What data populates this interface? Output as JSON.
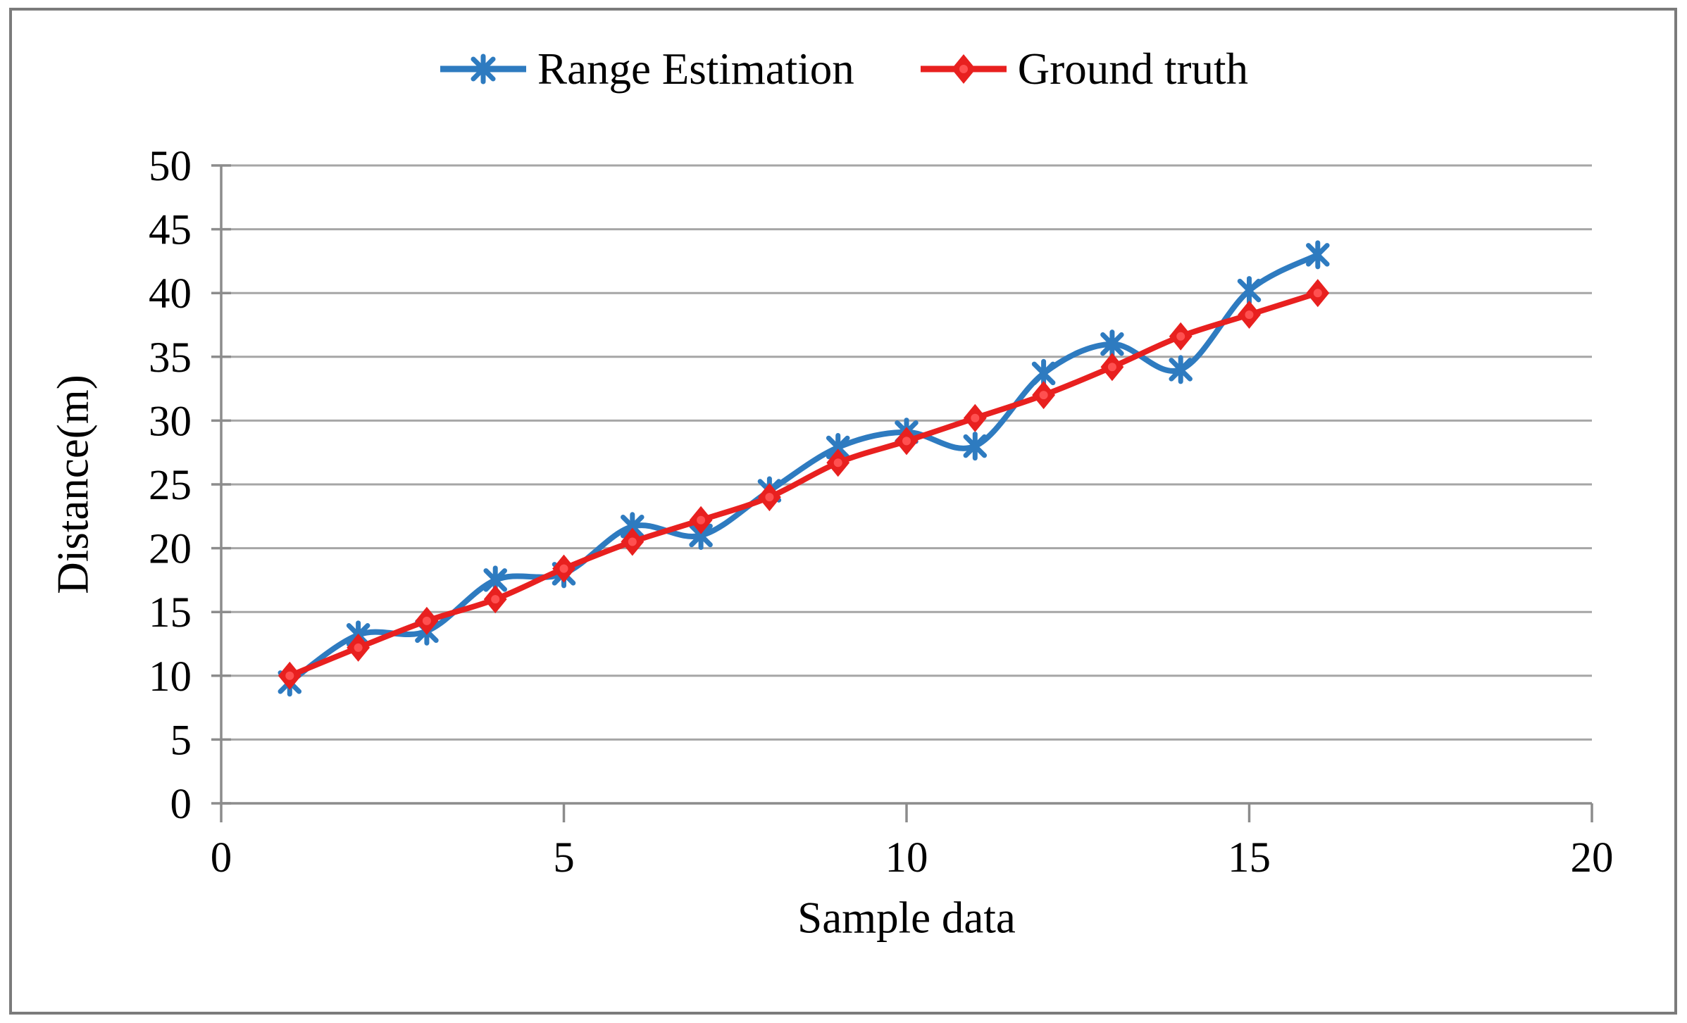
{
  "colors": {
    "background": "#ffffff",
    "frame_border": "#7b7b7b",
    "gridline": "#a6a6a6",
    "axis": "#8c8c8c",
    "text": "#000000",
    "series_blue": "#2e7bc0",
    "series_red": "#e8201f",
    "red_marker_center": "#ff5050"
  },
  "chart_data": {
    "type": "line",
    "title": "",
    "xlabel": "Sample data",
    "ylabel": "Distance(m)",
    "xlim": [
      0,
      20
    ],
    "ylim": [
      0,
      50
    ],
    "xticks": [
      0,
      5,
      10,
      15,
      20
    ],
    "yticks": [
      0,
      5,
      10,
      15,
      20,
      25,
      30,
      35,
      40,
      45,
      50
    ],
    "grid": "horizontal-only",
    "legend_position": "top-center",
    "x": [
      1,
      2,
      3,
      4,
      5,
      6,
      7,
      8,
      9,
      10,
      11,
      12,
      13,
      14,
      15,
      16
    ],
    "series": [
      {
        "name": "Range Estimation",
        "color": "#2e7bc0",
        "marker": "asterisk",
        "smooth": true,
        "values": [
          9.5,
          13.2,
          13.5,
          17.5,
          18.0,
          21.7,
          21.0,
          24.5,
          27.9,
          29.1,
          28.0,
          33.7,
          36.0,
          34.0,
          40.2,
          43.0
        ]
      },
      {
        "name": "Ground truth",
        "color": "#e8201f",
        "marker": "diamond",
        "smooth": true,
        "values": [
          10.0,
          12.2,
          14.3,
          16.0,
          18.4,
          20.5,
          22.2,
          24.0,
          26.7,
          28.4,
          30.2,
          32.0,
          34.2,
          36.6,
          38.3,
          40.0
        ]
      }
    ]
  }
}
